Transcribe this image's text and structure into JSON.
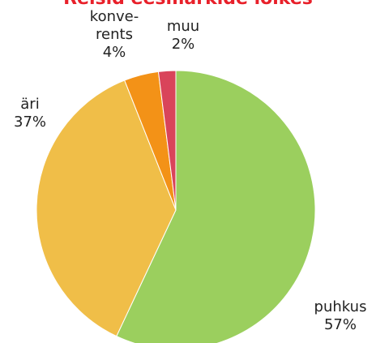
{
  "chart_data": {
    "type": "pie",
    "title": "Reisid eesmärkide lõikes",
    "categories": [
      "puhkus",
      "äri",
      "konve-\nrents",
      "muu"
    ],
    "values": [
      57,
      37,
      4,
      2
    ],
    "value_labels": [
      "57%",
      "37%",
      "4%",
      "2%"
    ],
    "colors": [
      "#9bcf5e",
      "#f0be48",
      "#f39217",
      "#d9445a"
    ]
  }
}
